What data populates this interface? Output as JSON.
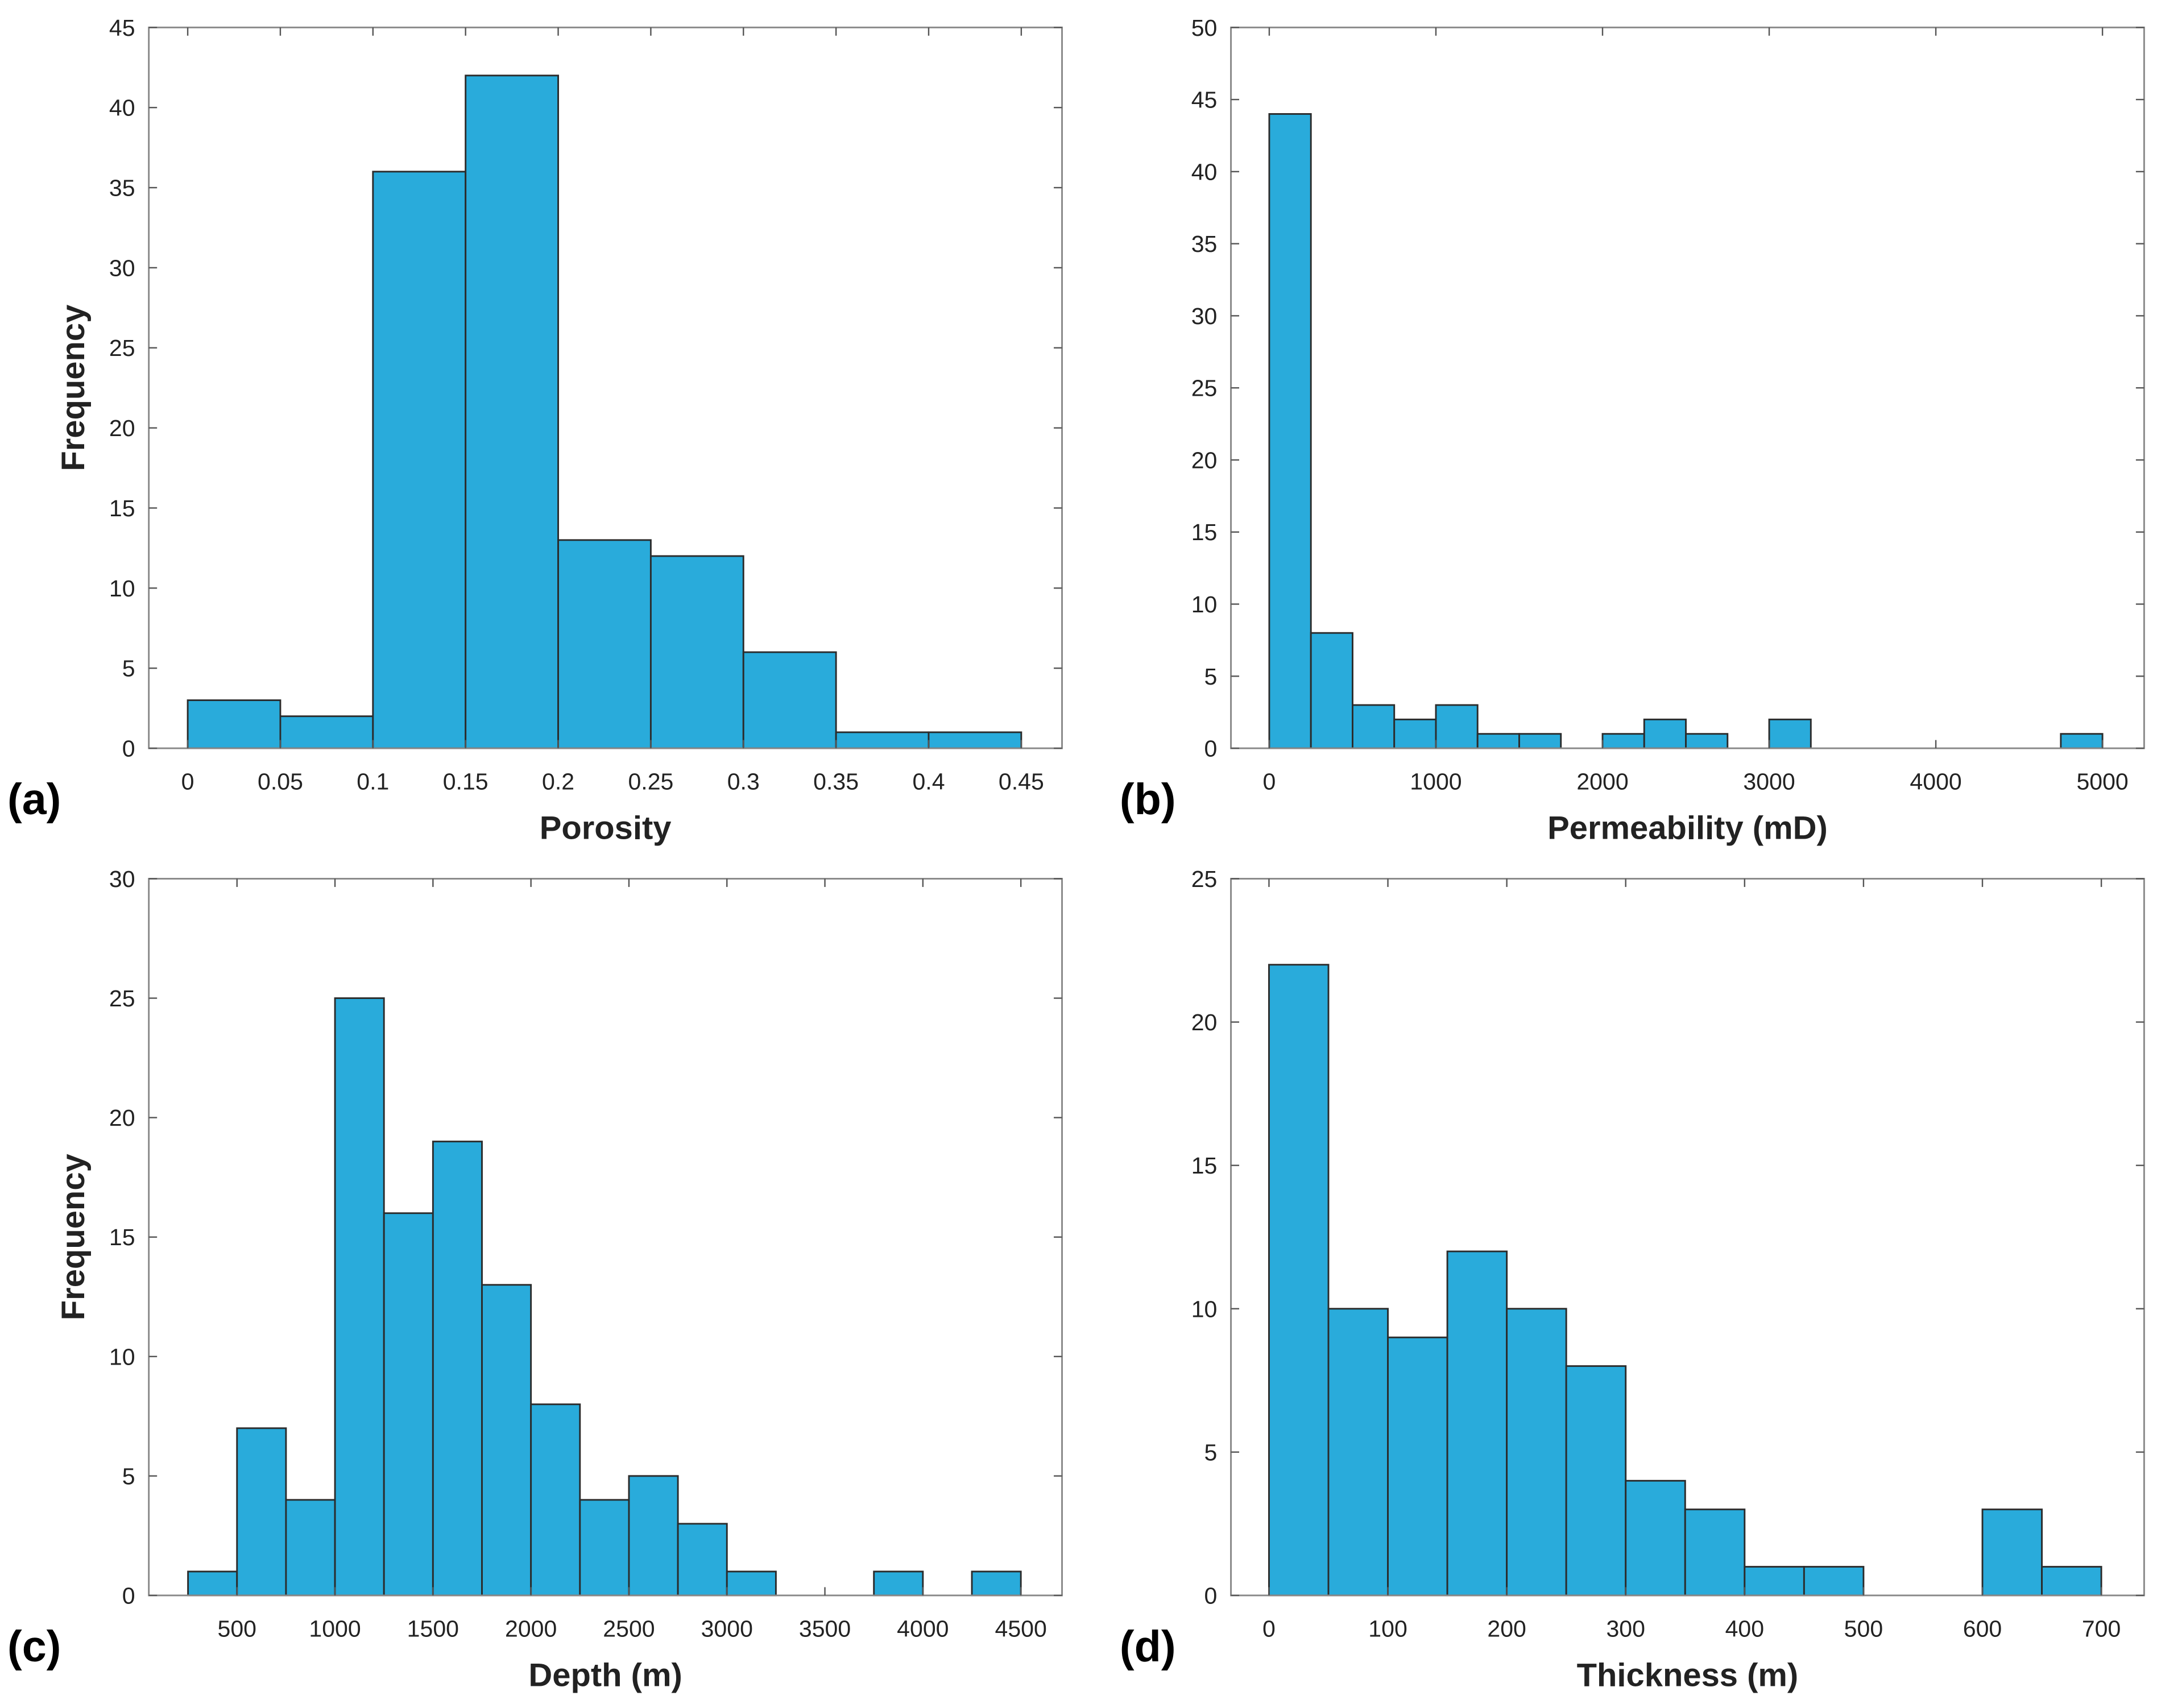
{
  "chart_data": [
    {
      "type": "histogram",
      "panel_label": "(a)",
      "x_label": "Porosity",
      "y_label": "Frequency",
      "color": "#29abdb",
      "bins": [
        0,
        0.05,
        0.1,
        0.15,
        0.2,
        0.25,
        0.3,
        0.35,
        0.4,
        0.45
      ],
      "values": [
        3,
        2,
        36,
        42,
        13,
        12,
        6,
        1,
        1
      ],
      "xlim": [
        -0.021,
        0.472
      ],
      "ylim": [
        0,
        45
      ],
      "xticks": [
        0,
        0.05,
        0.1,
        0.15,
        0.2,
        0.25,
        0.3,
        0.35,
        0.4,
        0.45
      ],
      "yticks": [
        0,
        5,
        10,
        15,
        20,
        25,
        30,
        35,
        40,
        45
      ]
    },
    {
      "type": "histogram",
      "panel_label": "(b)",
      "x_label": "Permeability (mD)",
      "color": "#29abdb",
      "bins": [
        0,
        250,
        500,
        750,
        1000,
        1250,
        1500,
        1750,
        2000,
        2250,
        2500,
        2750,
        3000,
        3250,
        3500,
        3750,
        4000,
        4250,
        4500,
        4750,
        5000
      ],
      "values": [
        44,
        8,
        3,
        2,
        3,
        1,
        1,
        0,
        1,
        2,
        1,
        0,
        2,
        0,
        0,
        0,
        0,
        0,
        0,
        1
      ],
      "xlim": [
        -230,
        5250
      ],
      "ylim": [
        0,
        50
      ],
      "xticks": [
        0,
        1000,
        2000,
        3000,
        4000,
        5000
      ],
      "yticks": [
        0,
        5,
        10,
        15,
        20,
        25,
        30,
        35,
        40,
        45,
        50
      ]
    },
    {
      "type": "histogram",
      "panel_label": "(c)",
      "x_label": "Depth (m)",
      "y_label": "Frequency",
      "color": "#29abdb",
      "bins": [
        250,
        500,
        750,
        1000,
        1250,
        1500,
        1750,
        2000,
        2250,
        2500,
        2750,
        3000,
        3250,
        3500,
        3750,
        4000,
        4250,
        4500
      ],
      "values": [
        1,
        7,
        4,
        25,
        16,
        19,
        13,
        8,
        4,
        5,
        3,
        1,
        0,
        0,
        1,
        0,
        1
      ],
      "xlim": [
        50,
        4710
      ],
      "ylim": [
        0,
        30
      ],
      "xticks": [
        500,
        1000,
        1500,
        2000,
        2500,
        3000,
        3500,
        4000,
        4500
      ],
      "yticks": [
        0,
        5,
        10,
        15,
        20,
        25,
        30
      ]
    },
    {
      "type": "histogram",
      "panel_label": "(d)",
      "x_label": "Thickness (m)",
      "color": "#29abdb",
      "bins": [
        0,
        50,
        100,
        150,
        200,
        250,
        300,
        350,
        400,
        450,
        500,
        550,
        600,
        650,
        700
      ],
      "values": [
        22,
        10,
        9,
        12,
        10,
        8,
        4,
        3,
        1,
        1,
        0,
        0,
        3,
        1
      ],
      "xlim": [
        -32,
        736
      ],
      "ylim": [
        0,
        25
      ],
      "xticks": [
        0,
        100,
        200,
        300,
        400,
        500,
        600,
        700
      ],
      "yticks": [
        0,
        5,
        10,
        15,
        20,
        25
      ]
    }
  ]
}
